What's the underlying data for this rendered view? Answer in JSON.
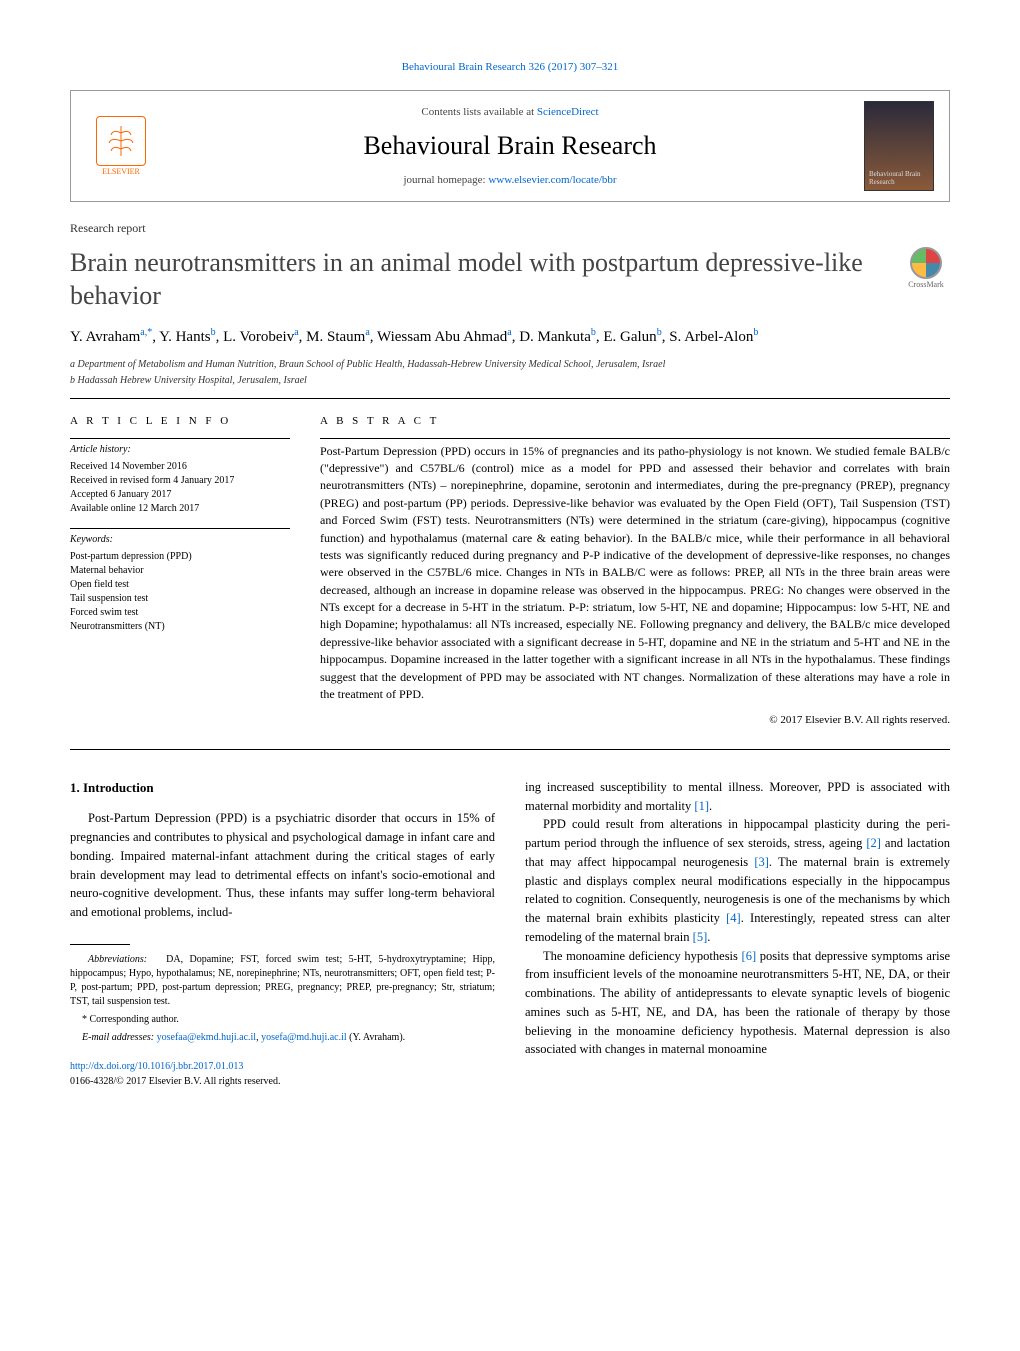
{
  "top_ref": "Behavioural Brain Research 326 (2017) 307–321",
  "header": {
    "contents_prefix": "Contents lists available at ",
    "contents_link": "ScienceDirect",
    "journal_name": "Behavioural Brain Research",
    "homepage_prefix": "journal homepage: ",
    "homepage_url": "www.elsevier.com/locate/bbr",
    "publisher": "ELSEVIER",
    "cover_label": "Behavioural Brain Research"
  },
  "article_type": "Research report",
  "title": "Brain neurotransmitters in an animal model with postpartum depressive-like behavior",
  "crossmark": "CrossMark",
  "authors_html": "Y. Avraham<sup>a,*</sup>, Y. Hants<sup>b</sup>, L. Vorobeiv<sup>a</sup>, M. Staum<sup>a</sup>, Wiessam Abu Ahmad<sup>a</sup>, D. Mankuta<sup>b</sup>, E. Galun<sup>b</sup>, S. Arbel-Alon<sup>b</sup>",
  "affiliations": [
    "a Department of Metabolism and Human Nutrition, Braun School of Public Health, Hadassah-Hebrew University Medical School, Jerusalem, Israel",
    "b Hadassah Hebrew University Hospital, Jerusalem, Israel"
  ],
  "info": {
    "heading": "A R T I C L E   I N F O",
    "history_label": "Article history:",
    "history": [
      "Received 14 November 2016",
      "Received in revised form 4 January 2017",
      "Accepted 6 January 2017",
      "Available online 12 March 2017"
    ],
    "keywords_label": "Keywords:",
    "keywords": [
      "Post-partum depression (PPD)",
      "Maternal behavior",
      "Open field test",
      "Tail suspension test",
      "Forced swim test",
      "Neurotransmitters (NT)"
    ]
  },
  "abstract": {
    "heading": "A B S T R A C T",
    "text": "Post-Partum Depression (PPD) occurs in 15% of pregnancies and its patho-physiology is not known. We studied female BALB/c (\"depressive\") and C57BL/6 (control) mice as a model for PPD and assessed their behavior and correlates with brain neurotransmitters (NTs) – norepinephrine, dopamine, serotonin and intermediates, during the pre-pregnancy (PREP), pregnancy (PREG) and post-partum (PP) periods. Depressive-like behavior was evaluated by the Open Field (OFT), Tail Suspension (TST) and Forced Swim (FST) tests. Neurotransmitters (NTs) were determined in the striatum (care-giving), hippocampus (cognitive function) and hypothalamus (maternal care & eating behavior). In the BALB/c mice, while their performance in all behavioral tests was significantly reduced during pregnancy and P-P indicative of the development of depressive-like responses, no changes were observed in the C57BL/6 mice. Changes in NTs in BALB/C were as follows: PREP, all NTs in the three brain areas were decreased, although an increase in dopamine release was observed in the hippocampus. PREG: No changes were observed in the NTs except for a decrease in 5-HT in the striatum. P-P: striatum, low 5-HT, NE and dopamine; Hippocampus: low 5-HT, NE and high Dopamine; hypothalamus: all NTs increased, especially NE. Following pregnancy and delivery, the BALB/c mice developed depressive-like behavior associated with a significant decrease in 5-HT, dopamine and NE in the striatum and 5-HT and NE in the hippocampus. Dopamine increased in the latter together with a significant increase in all NTs in the hypothalamus. These findings suggest that the development of PPD may be associated with NT changes. Normalization of these alterations may have a role in the treatment of PPD.",
    "copyright": "© 2017 Elsevier B.V. All rights reserved."
  },
  "body": {
    "section_number": "1.",
    "section_title": "Introduction",
    "left_paragraphs": [
      "Post-Partum Depression (PPD) is a psychiatric disorder that occurs in 15% of pregnancies and contributes to physical and psychological damage in infant care and bonding. Impaired maternal-infant attachment during the critical stages of early brain development may lead to detrimental effects on infant's socio-emotional and neuro-cognitive development. Thus, these infants may suffer long-term behavioral and emotional problems, includ-"
    ],
    "right_paragraphs": [
      "ing increased susceptibility to mental illness. Moreover, PPD is associated with maternal morbidity and mortality <span class=\"ref-link\">[1]</span>.",
      "PPD could result from alterations in hippocampal plasticity during the peri-partum period through the influence of sex steroids, stress, ageing <span class=\"ref-link\">[2]</span> and lactation that may affect hippocampal neurogenesis <span class=\"ref-link\">[3]</span>. The maternal brain is extremely plastic and displays complex neural modifications especially in the hippocampus related to cognition. Consequently, neurogenesis is one of the mechanisms by which the maternal brain exhibits plasticity <span class=\"ref-link\">[4]</span>. Interestingly, repeated stress can alter remodeling of the maternal brain <span class=\"ref-link\">[5]</span>.",
      "The monoamine deficiency hypothesis <span class=\"ref-link\">[6]</span> posits that depressive symptoms arise from insufficient levels of the monoamine neurotransmitters 5-HT, NE, DA, or their combinations. The ability of antidepressants to elevate synaptic levels of biogenic amines such as 5-HT, NE, and DA, has been the rationale of therapy by those believing in the monoamine deficiency hypothesis. Maternal depression is also associated with changes in maternal monoamine"
    ]
  },
  "footnotes": {
    "abbrev_label": "Abbreviations:",
    "abbrev_text": "DA, Dopamine; FST, forced swim test; 5-HT, 5-hydroxytryptamine; Hipp, hippocampus; Hypo, hypothalamus; NE, norepinephrine; NTs, neurotransmitters; OFT, open field test; P-P, post-partum; PPD, post-partum depression; PREG, pregnancy; PREP, pre-pregnancy; Str, striatum; TST, tail suspension test.",
    "corresponding": "* Corresponding author.",
    "email_label": "E-mail addresses:",
    "email1": "yosefaa@ekmd.huji.ac.il",
    "email2": "yosefa@md.huji.ac.il",
    "email_attrib": "(Y. Avraham)."
  },
  "doi": {
    "url": "http://dx.doi.org/10.1016/j.bbr.2017.01.013",
    "issn_line": "0166-4328/© 2017 Elsevier B.V. All rights reserved."
  },
  "colors": {
    "link": "#0066cc",
    "elsevier": "#ff6600",
    "text": "#000000",
    "muted": "#444444"
  }
}
